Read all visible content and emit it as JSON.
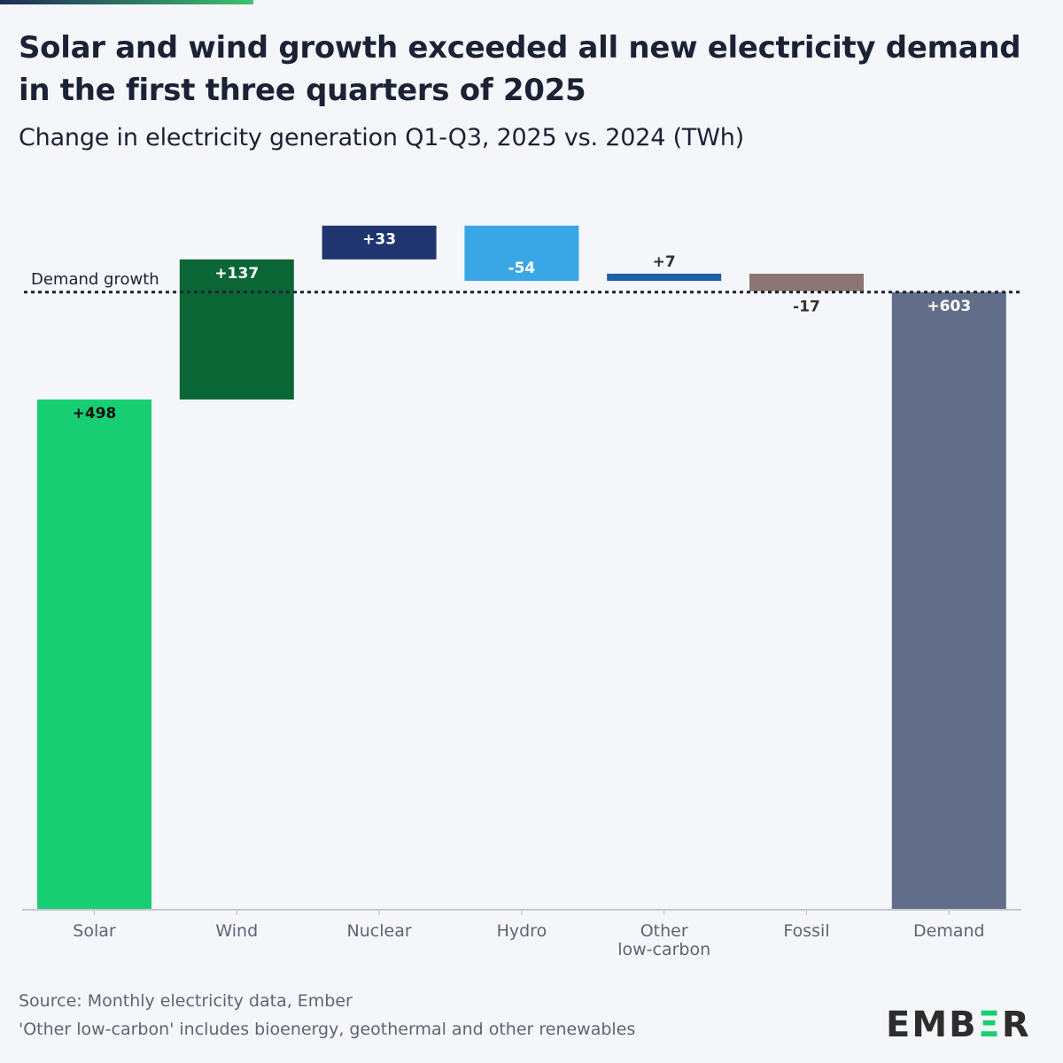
{
  "header": {
    "title": "Solar and wind growth exceeded all new electricity demand in the first three quarters of 2025",
    "subtitle": "Change in electricity generation Q1-Q3, 2025 vs. 2024 (TWh)"
  },
  "chart_data": {
    "type": "waterfall",
    "title": "Solar and wind growth exceeded all new electricity demand in the first three quarters of 2025",
    "subtitle": "Change in electricity generation Q1-Q3, 2025 vs. 2024 (TWh)",
    "xlabel": "",
    "ylabel": "TWh",
    "ylim": [
      0,
      670
    ],
    "grid": false,
    "categories": [
      "Solar",
      "Wind",
      "Nuclear",
      "Hydro",
      "Other low-carbon",
      "Fossil",
      "Demand"
    ],
    "category_lines": [
      [
        "Solar"
      ],
      [
        "Wind"
      ],
      [
        "Nuclear"
      ],
      [
        "Hydro"
      ],
      [
        "Other",
        "low-carbon"
      ],
      [
        "Fossil"
      ],
      [
        "Demand"
      ]
    ],
    "values": [
      498,
      137,
      33,
      -54,
      7,
      -17,
      603
    ],
    "labels": [
      "+498",
      "+137",
      "+33",
      "-54",
      "+7",
      "-17",
      "+603"
    ],
    "is_total": [
      false,
      false,
      false,
      false,
      false,
      false,
      true
    ],
    "colors": [
      "#17cf72",
      "#0b6636",
      "#1f3570",
      "#39a6e6",
      "#1f5fa3",
      "#8a7672",
      "#626e89"
    ],
    "label_colors": [
      "#111111",
      "#ffffff",
      "#ffffff",
      "#ffffff",
      "#333333",
      "#333333",
      "#ffffff"
    ],
    "reference_line": {
      "label": "Demand growth",
      "value": 603
    }
  },
  "footer": {
    "source": "Source: Monthly electricity data, Ember",
    "note": "'Other low-carbon' includes bioenergy, geothermal and other renewables"
  },
  "logo": {
    "pre": "EMB",
    "mid": "Ξ",
    "post": "R"
  }
}
